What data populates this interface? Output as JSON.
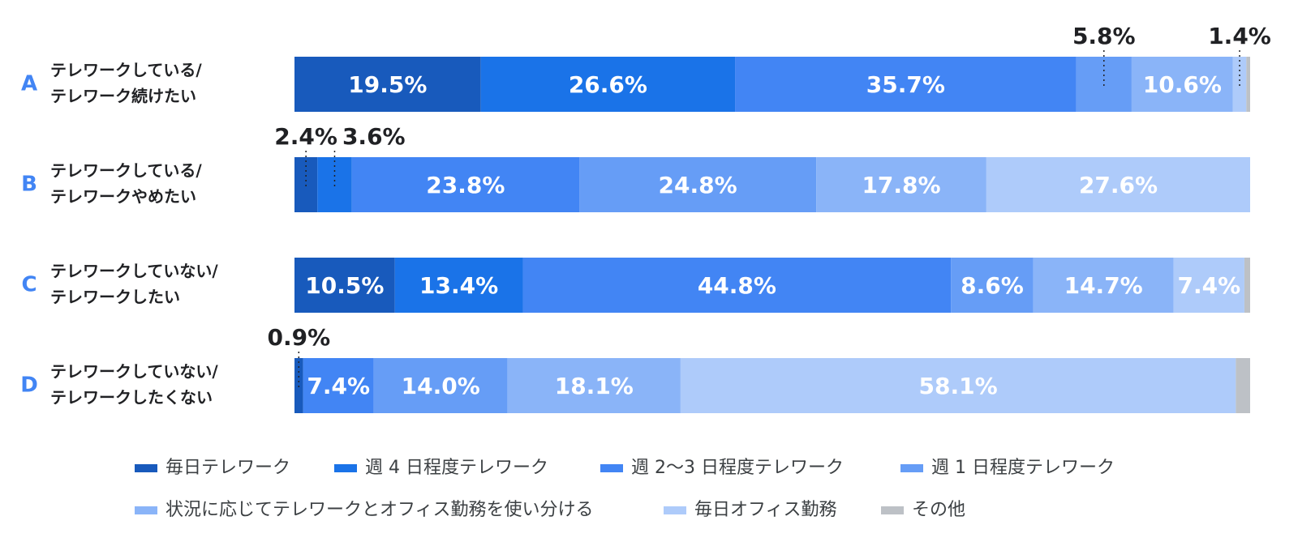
{
  "chart_data": {
    "type": "stacked-bar",
    "categories": [
      "A",
      "B",
      "C",
      "D"
    ],
    "category_labels": [
      [
        "テレワークしている/",
        "テレワーク続けたい"
      ],
      [
        "テレワークしている/",
        "テレワークやめたい"
      ],
      [
        "テレワークしていない/",
        "テレワークしたい"
      ],
      [
        "テレワークしていない/",
        "テレワークしたくない"
      ]
    ],
    "xlim": [
      0,
      100
    ],
    "series": [
      {
        "name": "毎日テレワーク",
        "color": "#185abc",
        "values": [
          19.5,
          2.4,
          10.5,
          0.9
        ],
        "value_labels": [
          "19.5%",
          "2.4%",
          "10.5%",
          "0.9%"
        ]
      },
      {
        "name": "週 4 日程度テレワーク",
        "color": "#1a73e8",
        "values": [
          26.6,
          3.6,
          13.4,
          0
        ],
        "value_labels": [
          "26.6%",
          "3.6%",
          "13.4%",
          null
        ]
      },
      {
        "name": "週 2〜3 日程度テレワーク",
        "color": "#4285f4",
        "values": [
          35.7,
          23.8,
          44.8,
          7.4
        ],
        "value_labels": [
          "35.7%",
          "23.8%",
          "44.8%",
          "7.4%"
        ]
      },
      {
        "name": "週 1 日程度テレワーク",
        "color": "#669df6",
        "values": [
          5.8,
          24.8,
          8.6,
          14.0
        ],
        "value_labels": [
          "5.8%",
          "24.8%",
          "8.6%",
          "14.0%"
        ]
      },
      {
        "name": "状況に応じてテレワークとオフィス勤務を使い分ける",
        "color": "#8ab4f8",
        "values": [
          10.6,
          17.8,
          14.7,
          18.1
        ],
        "value_labels": [
          "10.6%",
          "17.8%",
          "14.7%",
          "18.1%"
        ]
      },
      {
        "name": "毎日オフィス勤務",
        "color": "#aecbfa",
        "values": [
          1.4,
          27.6,
          7.4,
          58.1
        ],
        "value_labels": [
          "1.4%",
          "27.6%",
          "7.4%",
          "58.1%"
        ]
      },
      {
        "name": "その他",
        "color": "#bdc1c6",
        "values": [
          0.4,
          0,
          0.6,
          1.5
        ],
        "value_labels": [
          null,
          null,
          null,
          null
        ]
      }
    ]
  }
}
